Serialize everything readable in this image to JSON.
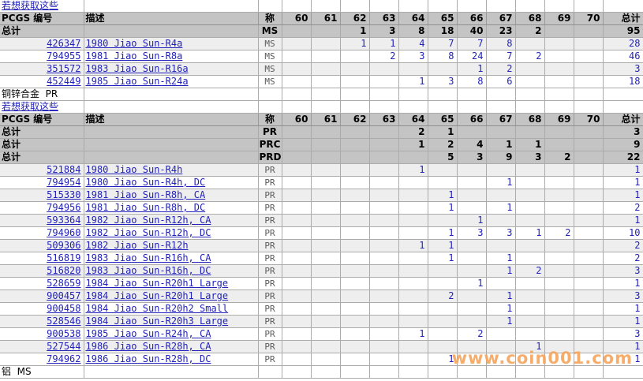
{
  "link_label": "若想获取这些",
  "headers": {
    "id": "PCGS 编号",
    "desc": "描述",
    "designation": "称",
    "total": "总计"
  },
  "grades": [
    "60",
    "61",
    "62",
    "63",
    "64",
    "65",
    "66",
    "67",
    "68",
    "69",
    "70"
  ],
  "total_row_label": "总计",
  "section2_title": "铜锌合金  PR",
  "footer_title": "铝  MS",
  "watermark": "www.coin001.com",
  "colors": {
    "link_blue": "#2222bb",
    "count_blue": "#2323b8",
    "header_gray": "#c4c4c4",
    "alt_row_gray": "#eeeeee",
    "grid_gray": "#ababab",
    "watermark_orange": "#f5a65e"
  },
  "table1": {
    "totals": [
      {
        "designation": "MS",
        "counts": [
          "",
          "",
          "1",
          "3",
          "8",
          "18",
          "40",
          "23",
          "2",
          "",
          ""
        ],
        "total": "95"
      }
    ],
    "rows": [
      {
        "id": "426347",
        "desc": "1980 Jiao Sun-R4a",
        "designation": "MS",
        "counts": [
          "",
          "",
          "1",
          "1",
          "4",
          "7",
          "7",
          "8",
          "",
          "",
          ""
        ],
        "total": "28"
      },
      {
        "id": "794955",
        "desc": "1981 Jiao Sun-R8a",
        "designation": "MS",
        "counts": [
          "",
          "",
          "",
          "2",
          "3",
          "8",
          "24",
          "7",
          "2",
          "",
          ""
        ],
        "total": "46"
      },
      {
        "id": "351572",
        "desc": "1983 Jiao Sun-R16a",
        "designation": "MS",
        "counts": [
          "",
          "",
          "",
          "",
          "",
          "",
          "1",
          "2",
          "",
          "",
          ""
        ],
        "total": "3"
      },
      {
        "id": "452449",
        "desc": "1985 Jiao Sun-R24a",
        "designation": "MS",
        "counts": [
          "",
          "",
          "",
          "",
          "1",
          "3",
          "8",
          "6",
          "",
          "",
          ""
        ],
        "total": "18"
      }
    ]
  },
  "table2": {
    "totals": [
      {
        "designation": "PR",
        "counts": [
          "",
          "",
          "",
          "",
          "2",
          "1",
          "",
          "",
          "",
          "",
          ""
        ],
        "total": "3"
      },
      {
        "designation": "PRC",
        "counts": [
          "",
          "",
          "",
          "",
          "1",
          "2",
          "4",
          "1",
          "1",
          "",
          ""
        ],
        "total": "9"
      },
      {
        "designation": "PRD",
        "counts": [
          "",
          "",
          "",
          "",
          "",
          "5",
          "3",
          "9",
          "3",
          "2",
          ""
        ],
        "total": "22"
      }
    ],
    "rows": [
      {
        "id": "521884",
        "desc": "1980 Jiao Sun-R4h",
        "designation": "PR",
        "counts": [
          "",
          "",
          "",
          "",
          "1",
          "",
          "",
          "",
          "",
          "",
          ""
        ],
        "total": "1"
      },
      {
        "id": "794954",
        "desc": "1980 Jiao Sun-R4h, DC",
        "designation": "PR",
        "counts": [
          "",
          "",
          "",
          "",
          "",
          "",
          "",
          "1",
          "",
          "",
          ""
        ],
        "total": "1"
      },
      {
        "id": "515330",
        "desc": "1981 Jiao Sun-R8h, CA",
        "designation": "PR",
        "counts": [
          "",
          "",
          "",
          "",
          "",
          "1",
          "",
          "",
          "",
          "",
          ""
        ],
        "total": "1"
      },
      {
        "id": "794956",
        "desc": "1981 Jiao Sun-R8h, DC",
        "designation": "PR",
        "counts": [
          "",
          "",
          "",
          "",
          "",
          "1",
          "",
          "1",
          "",
          "",
          ""
        ],
        "total": "2"
      },
      {
        "id": "593364",
        "desc": "1982 Jiao Sun-R12h, CA",
        "designation": "PR",
        "counts": [
          "",
          "",
          "",
          "",
          "",
          "",
          "1",
          "",
          "",
          "",
          ""
        ],
        "total": "1"
      },
      {
        "id": "794960",
        "desc": "1982 Jiao Sun-R12h, DC",
        "designation": "PR",
        "counts": [
          "",
          "",
          "",
          "",
          "",
          "1",
          "3",
          "3",
          "1",
          "2",
          ""
        ],
        "total": "10"
      },
      {
        "id": "509306",
        "desc": "1982 Jiao Sun-R12h",
        "designation": "PR",
        "counts": [
          "",
          "",
          "",
          "",
          "1",
          "1",
          "",
          "",
          "",
          "",
          ""
        ],
        "total": "2"
      },
      {
        "id": "516819",
        "desc": "1983 Jiao Sun-R16h, CA",
        "designation": "PR",
        "counts": [
          "",
          "",
          "",
          "",
          "",
          "1",
          "",
          "1",
          "",
          "",
          ""
        ],
        "total": "2"
      },
      {
        "id": "516820",
        "desc": "1983 Jiao Sun-R16h, DC",
        "designation": "PR",
        "counts": [
          "",
          "",
          "",
          "",
          "",
          "",
          "",
          "1",
          "2",
          "",
          ""
        ],
        "total": "3"
      },
      {
        "id": "528659",
        "desc": "1984 Jiao Sun-R20h1 Large",
        "designation": "PR",
        "counts": [
          "",
          "",
          "",
          "",
          "",
          "",
          "1",
          "",
          "",
          "",
          ""
        ],
        "total": "1"
      },
      {
        "id": "900457",
        "desc": "1984 Jiao Sun-R20h1 Large",
        "designation": "PR",
        "counts": [
          "",
          "",
          "",
          "",
          "",
          "2",
          "",
          "1",
          "",
          "",
          ""
        ],
        "total": "3"
      },
      {
        "id": "900458",
        "desc": "1984 Jiao Sun-R20h2 Small",
        "designation": "PR",
        "counts": [
          "",
          "",
          "",
          "",
          "",
          "",
          "",
          "1",
          "",
          "",
          ""
        ],
        "total": "1"
      },
      {
        "id": "528546",
        "desc": "1984 Jiao Sun-R20h3 Large",
        "designation": "PR",
        "counts": [
          "",
          "",
          "",
          "",
          "",
          "",
          "",
          "1",
          "",
          "",
          ""
        ],
        "total": "1"
      },
      {
        "id": "900538",
        "desc": "1985 Jiao Sun-R24h, CA",
        "designation": "PR",
        "counts": [
          "",
          "",
          "",
          "",
          "1",
          "",
          "2",
          "",
          "",
          "",
          ""
        ],
        "total": "3"
      },
      {
        "id": "527544",
        "desc": "1986 Jiao Sun-R28h, CA",
        "designation": "PR",
        "counts": [
          "",
          "",
          "",
          "",
          "",
          "",
          "",
          "",
          "1",
          "",
          ""
        ],
        "total": "1"
      },
      {
        "id": "794962",
        "desc": "1986 Jiao Sun-R28h, DC",
        "designation": "PR",
        "counts": [
          "",
          "",
          "",
          "",
          "",
          "1",
          "",
          "",
          "",
          "",
          ""
        ],
        "total": "1"
      }
    ]
  }
}
